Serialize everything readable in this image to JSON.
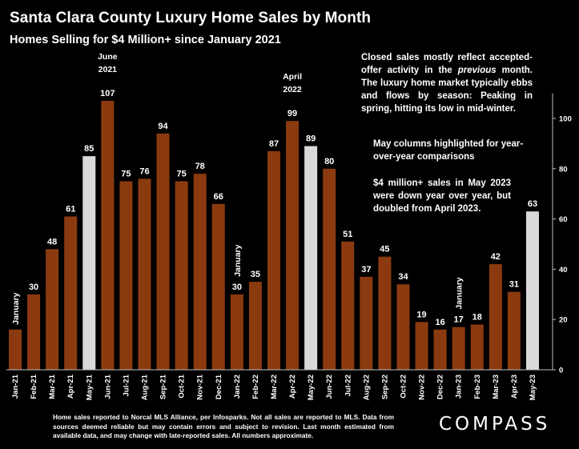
{
  "header": {
    "title": "Santa Clara County Luxury Home Sales by Month",
    "subtitle": "Homes Selling for $4 Million+ since January 2021"
  },
  "notes": {
    "seasonal_before": "Closed sales mostly reflect accepted-offer activity in the ",
    "seasonal_italic": "previous",
    "seasonal_after": " month. The luxury home market typically ebbs and flows by season: Peaking in spring, hitting its low in mid-winter.",
    "may_highlight": "May columns highlighted for year-over-year comparisons",
    "may_2023": "$4 million+ sales in May 2023 were down year over year, but doubled from April 2023."
  },
  "footer": {
    "disclaimer": "Home sales reported to Norcal MLS Alliance, per Infosparks. Not all sales are reported to MLS. Data from sources deemed reliable but may contain errors and subject to revision. Last month estimated from available data, and may change with late-reported sales. All numbers approximate."
  },
  "brand": {
    "logo_text": "COMPASS"
  },
  "colors": {
    "bar": "#8B3A0F",
    "highlight": "#D9D9D9",
    "background": "#000000",
    "text": "#FFFFFF"
  },
  "chart_data": {
    "type": "bar",
    "title": "Santa Clara County Luxury Home Sales by Month",
    "subtitle": "Homes Selling for $4 Million+ since January 2021",
    "categories": [
      "Jan-21",
      "Feb-21",
      "Mar-21",
      "Apr-21",
      "May-21",
      "Jun-21",
      "Jul-21",
      "Aug-21",
      "Sep-21",
      "Oct-21",
      "Nov-21",
      "Dec-21",
      "Jan-22",
      "Feb-22",
      "Mar-22",
      "Apr-22",
      "May-22",
      "Jun-22",
      "Jul-22",
      "Aug-22",
      "Sep-22",
      "Oct-22",
      "Nov-22",
      "Dec-22",
      "Jan-23",
      "Feb-23",
      "Mar-23",
      "Apr-23",
      "May-23"
    ],
    "values": [
      16,
      30,
      48,
      61,
      85,
      107,
      75,
      76,
      94,
      75,
      78,
      66,
      30,
      35,
      87,
      99,
      89,
      80,
      51,
      37,
      45,
      34,
      19,
      16,
      17,
      18,
      42,
      31,
      63
    ],
    "labels": [
      "",
      "30",
      "48",
      "61",
      "85",
      "107",
      "75",
      "76",
      "94",
      "75",
      "78",
      "66",
      "30",
      "35",
      "87",
      "99",
      "89",
      "80",
      "51",
      "37",
      "45",
      "34",
      "19",
      "16",
      "17",
      "18",
      "42",
      "31",
      "63"
    ],
    "highlighted": [
      "May-21",
      "May-22",
      "May-23"
    ],
    "yaxis": {
      "position": "right",
      "ylim": [
        0,
        110
      ],
      "ticks": [
        0,
        20,
        40,
        60,
        80,
        100
      ]
    },
    "grid": false,
    "legend": "none",
    "annotations": [
      {
        "category": "Jan-21",
        "text": "January",
        "rotated": true
      },
      {
        "category": "Jun-21",
        "lines": [
          "June",
          "2021"
        ]
      },
      {
        "category": "Jan-22",
        "text": "January",
        "rotated": true
      },
      {
        "category": "Apr-22",
        "lines": [
          "April",
          "2022"
        ]
      },
      {
        "category": "Jan-23",
        "text": "January",
        "rotated": true
      }
    ]
  }
}
